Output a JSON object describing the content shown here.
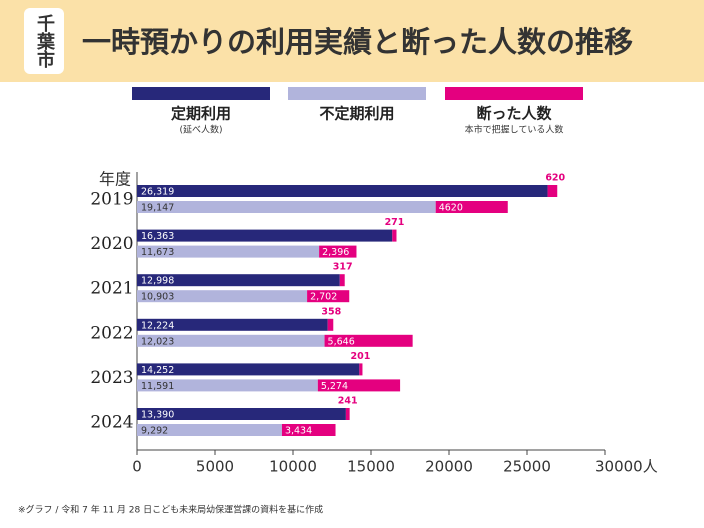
{
  "chart_data": {
    "type": "bar",
    "orientation": "horizontal",
    "badge": "千葉市",
    "title": "一時預かりの利用実績と断った人数の推移",
    "y_label": "年度",
    "categories": [
      "2019",
      "2020",
      "2021",
      "2022",
      "2023",
      "2024"
    ],
    "series": [
      {
        "name": "定期利用",
        "note": "(延べ人数)",
        "color": "#27287a",
        "text_color": "#ffffff",
        "values": [
          26319,
          16363,
          12998,
          12224,
          14252,
          13390
        ],
        "value_labels": [
          "26,319",
          "16,363",
          "12,998",
          "12,224",
          "14,252",
          "13,390"
        ],
        "declined_values": [
          620,
          271,
          317,
          358,
          201,
          241
        ],
        "declined_labels": [
          "620",
          "271",
          "317",
          "358",
          "201",
          "241"
        ]
      },
      {
        "name": "不定期利用",
        "color": "#b1b4dc",
        "text_color": "#333333",
        "values": [
          19147,
          11673,
          10903,
          12023,
          11591,
          9292
        ],
        "value_labels": [
          "19,147",
          "11,673",
          "10,903",
          "12,023",
          "11,591",
          "9,292"
        ],
        "declined_values": [
          4620,
          2396,
          2702,
          5646,
          5274,
          3434
        ],
        "declined_labels": [
          "4620",
          "2,396",
          "2,702",
          "5,646",
          "5,274",
          "3,434"
        ]
      }
    ],
    "declined": {
      "name": "断った人数",
      "note": "本市で把握している人数",
      "color": "#e4007f"
    },
    "xlim": [
      0,
      30000
    ],
    "xticks": [
      0,
      5000,
      10000,
      15000,
      20000,
      25000,
      {
        "value": 30000,
        "label": "30000人"
      }
    ],
    "footnote": "※グラフ / 令和 7 年 11 月 28 日こども未来局幼保運営課の資料を基に作成"
  }
}
